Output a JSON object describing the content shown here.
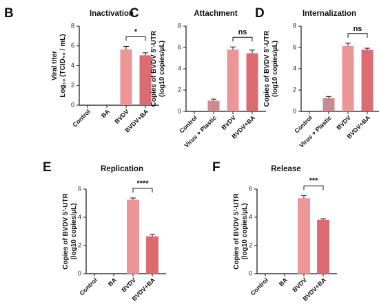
{
  "chart_data": [
    {
      "id": "B",
      "type": "bar",
      "panel_label": "B",
      "title": "Inactivation",
      "ylabel_lines": [
        "Viral titer",
        "Log₁₀ (TCID₅₀ / mL)"
      ],
      "ylim": [
        0,
        8
      ],
      "yticks": [
        0,
        2,
        4,
        6,
        8
      ],
      "categories": [
        "Control",
        "BA",
        "BVDV",
        "BVDV+BA"
      ],
      "values": [
        0,
        0,
        5.65,
        5.05
      ],
      "errors": [
        0,
        0,
        0.3,
        0.25
      ],
      "colors": [
        "#e89090",
        "#e89090",
        "#ec9698",
        "#dc6c72"
      ],
      "significance": [
        {
          "from": 2,
          "to": 3,
          "label": "*"
        }
      ]
    },
    {
      "id": "C",
      "type": "bar",
      "panel_label": "C",
      "title": "Attachment",
      "ylabel_lines": [
        "Copies of BVDV 5'-UTR",
        "(log10 copies/μL)"
      ],
      "ylim": [
        0,
        8
      ],
      "yticks": [
        0,
        2,
        4,
        6,
        8
      ],
      "categories": [
        "Control",
        "Virus + Plastic",
        "BVDV",
        "BVDV+BA"
      ],
      "values": [
        0,
        1.0,
        5.8,
        5.45
      ],
      "errors": [
        0,
        0.15,
        0.25,
        0.3
      ],
      "colors": [
        "#c98a92",
        "#c98a92",
        "#ec9698",
        "#dc6c72"
      ],
      "significance": [
        {
          "from": 2,
          "to": 3,
          "label": "ns"
        }
      ]
    },
    {
      "id": "D",
      "type": "bar",
      "panel_label": "D",
      "title": "Internalization",
      "ylabel_lines": [
        "Copies of BVDV 5'-UTR",
        "(log10 copies/μL)"
      ],
      "ylim": [
        0,
        8
      ],
      "yticks": [
        0,
        2,
        4,
        6,
        8
      ],
      "categories": [
        "Control",
        "Virus + Plastic",
        "BVDV",
        "BVDV+BA"
      ],
      "values": [
        0,
        1.25,
        6.15,
        5.78
      ],
      "errors": [
        0,
        0.15,
        0.25,
        0.15
      ],
      "colors": [
        "#c98a92",
        "#c98a92",
        "#ec9698",
        "#dc6c72"
      ],
      "significance": [
        {
          "from": 2,
          "to": 3,
          "label": "ns"
        }
      ]
    },
    {
      "id": "E",
      "type": "bar",
      "panel_label": "E",
      "title": "Replication",
      "ylabel_lines": [
        "Copies of BVDV 5'-UTR",
        "(log10 copies/μL)"
      ],
      "ylim": [
        0,
        6
      ],
      "yticks": [
        0,
        2,
        4,
        6
      ],
      "categories": [
        "Control",
        "BA",
        "BVDV",
        "BVDV+BA"
      ],
      "values": [
        0,
        0,
        5.25,
        2.65
      ],
      "errors": [
        0,
        0,
        0.12,
        0.15
      ],
      "colors": [
        "#e89090",
        "#e89090",
        "#ec9698",
        "#dc6c72"
      ],
      "significance": [
        {
          "from": 2,
          "to": 3,
          "label": "****"
        }
      ]
    },
    {
      "id": "F",
      "type": "bar",
      "panel_label": "F",
      "title": "Release",
      "ylabel_lines": [
        "Copies of BVDV 5'-UTR",
        "(log10 copies/μL)"
      ],
      "ylim": [
        0,
        6
      ],
      "yticks": [
        0,
        2,
        4,
        6
      ],
      "categories": [
        "Control",
        "BA",
        "BVDV",
        "BVDV+BA"
      ],
      "values": [
        0,
        0,
        5.35,
        3.82
      ],
      "errors": [
        0,
        0,
        0.2,
        0.08
      ],
      "colors": [
        "#e89090",
        "#e89090",
        "#ec9698",
        "#dc6c72"
      ],
      "significance": [
        {
          "from": 2,
          "to": 3,
          "label": "***"
        }
      ]
    }
  ]
}
